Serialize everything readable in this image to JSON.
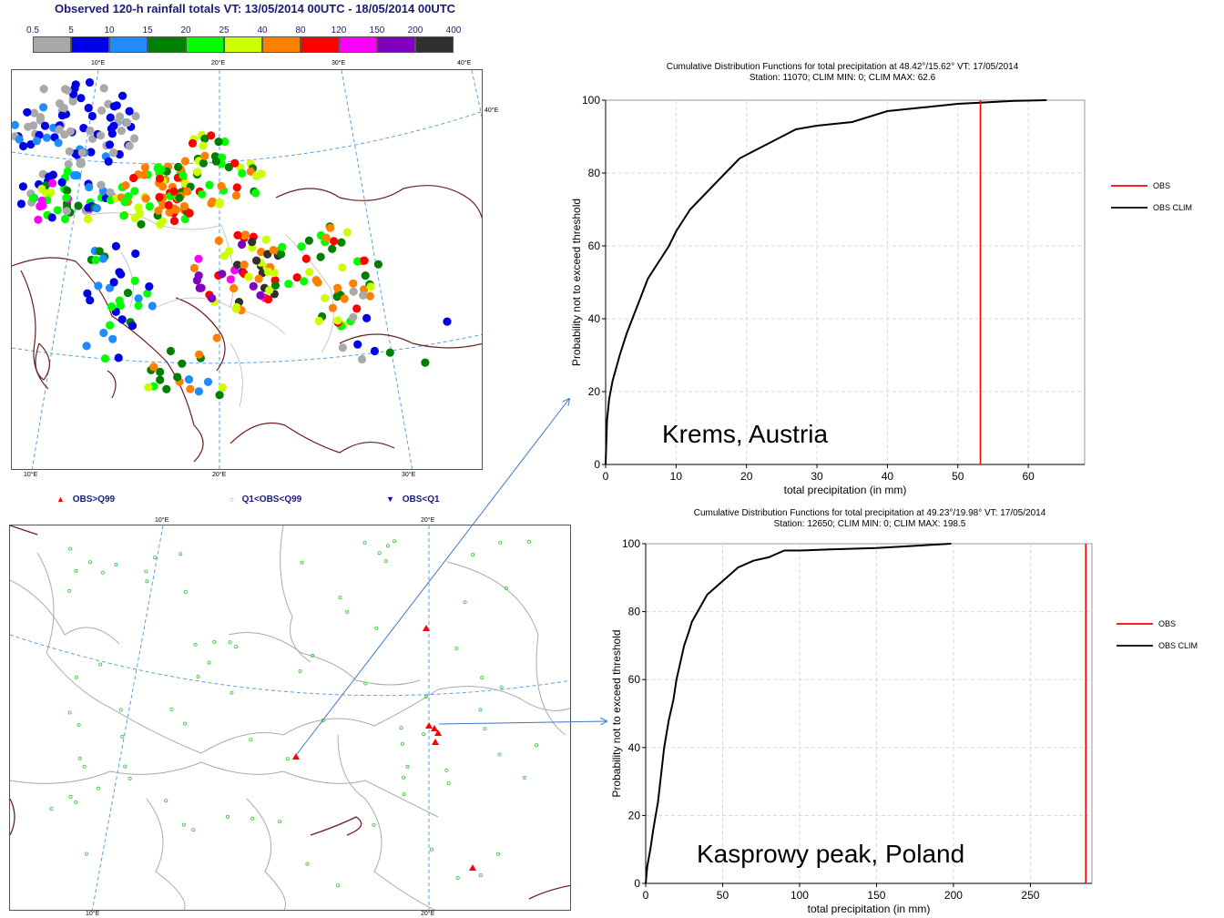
{
  "header": {
    "title": "Observed 120-h rainfall totals VT: 13/05/2014 00UTC - 18/05/2014 00UTC"
  },
  "colorbar": {
    "thresholds": [
      "0.5",
      "5",
      "10",
      "15",
      "20",
      "25",
      "40",
      "80",
      "120",
      "150",
      "200",
      "400"
    ],
    "colors": [
      "#a9a9a9",
      "#0000e6",
      "#1e8cff",
      "#008000",
      "#00ff00",
      "#ccff00",
      "#ff8000",
      "#ff0000",
      "#ff00ff",
      "#8000c0",
      "#303030"
    ]
  },
  "top_map": {
    "lon_labels_top": [
      "10°E",
      "20°E",
      "30°E",
      "40°E"
    ],
    "lon_labels_bottom": [
      "10°E",
      "20°E",
      "30°E"
    ],
    "lat_label": "40°E"
  },
  "legend": {
    "items": [
      {
        "symbol": "▲",
        "color": "#ff0000",
        "label": "OBS>Q99"
      },
      {
        "symbol": "○",
        "color": "#33cc33",
        "label": "Q1<OBS<Q99"
      },
      {
        "symbol": "▼",
        "color": "#0000cc",
        "label": "OBS<Q1"
      }
    ]
  },
  "bottom_map": {
    "lon_labels_top": [
      "10°E",
      "20°E"
    ],
    "lon_labels_bottom": [
      "10°E",
      "20°E"
    ]
  },
  "chart_data": [
    {
      "type": "line",
      "title": "Cumulative Distribution Functions for total precipitation at 48.42°/15.62° VT: 17/05/2014",
      "subtitle": "Station: 11070; CLIM MIN: 0; CLIM MAX: 62.6",
      "xlabel": "total precipitation  (in mm)",
      "ylabel": "Probability not to exceed threshold",
      "xlim": [
        0,
        68
      ],
      "ylim": [
        0,
        100
      ],
      "xticks": [
        0,
        10,
        20,
        30,
        40,
        50,
        60
      ],
      "yticks": [
        0,
        20,
        40,
        60,
        80,
        100
      ],
      "annotation": "Krems, Austria",
      "series": [
        {
          "name": "OBS",
          "color": "#ff0000",
          "type": "vline",
          "x": 53.2
        },
        {
          "name": "OBS CLIM",
          "color": "#000000",
          "x": [
            0,
            0.2,
            0.5,
            1,
            2,
            3,
            4,
            5,
            6,
            7,
            8,
            9,
            10,
            11,
            12,
            13,
            15,
            17,
            19,
            21,
            23,
            25,
            27,
            30,
            35,
            40,
            45,
            50,
            55,
            58,
            62.6
          ],
          "y": [
            0,
            12,
            18,
            23,
            30,
            36,
            41,
            46,
            51,
            54,
            57,
            60,
            64,
            67,
            70,
            72,
            76,
            80,
            84,
            86,
            88,
            90,
            92,
            93,
            94,
            97,
            98,
            99,
            99.5,
            99.8,
            100
          ]
        }
      ]
    },
    {
      "type": "line",
      "title": "Cumulative Distribution Functions for total precipitation at 49.23°/19.98° VT: 17/05/2014",
      "subtitle": "Station: 12650; CLIM MIN: 0; CLIM MAX: 198.5",
      "xlabel": "total precipitation  (in mm)",
      "ylabel": "Probability not to exceed threshold",
      "xlim": [
        0,
        290
      ],
      "ylim": [
        0,
        100
      ],
      "xticks": [
        0,
        50,
        100,
        150,
        200,
        250
      ],
      "yticks": [
        0,
        20,
        40,
        60,
        80,
        100
      ],
      "annotation": "Kasprowy peak, Poland",
      "series": [
        {
          "name": "OBS",
          "color": "#ff0000",
          "type": "vline",
          "x": 286
        },
        {
          "name": "OBS CLIM",
          "color": "#000000",
          "x": [
            0,
            1,
            3,
            5,
            8,
            10,
            12,
            15,
            18,
            20,
            22,
            25,
            28,
            30,
            35,
            40,
            45,
            50,
            55,
            60,
            70,
            80,
            90,
            100,
            120,
            150,
            198.5
          ],
          "y": [
            0,
            5,
            10,
            16,
            24,
            32,
            40,
            48,
            54,
            60,
            64,
            70,
            74,
            77,
            81,
            85,
            87,
            89,
            91,
            93,
            95,
            96,
            98,
            98,
            98.3,
            98.7,
            100
          ]
        }
      ]
    }
  ]
}
